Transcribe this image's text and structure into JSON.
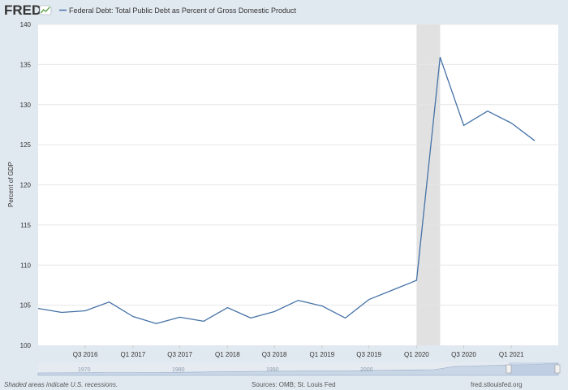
{
  "header": {
    "logo_text": "FRED",
    "legend_label": "Federal Debt: Total Public Debt as Percent of Gross Domestic Product"
  },
  "footer": {
    "note": "Shaded areas indicate U.S. recessions.",
    "sources": "Sources: OMB; St. Louis Fed",
    "site": "fred.stlouisfed.org"
  },
  "navigator": {
    "year_labels": [
      "1970",
      "1980",
      "1990",
      "2000"
    ]
  },
  "colors": {
    "series": "#4572a7",
    "recession": "#e1e1e1",
    "background": "#e1e9f0",
    "plot": "#ffffff"
  },
  "chart_data": {
    "type": "line",
    "title": "",
    "ylabel": "Percent of GDP",
    "xlabel": "",
    "ylim": [
      100,
      140
    ],
    "yticks": [
      100,
      105,
      110,
      115,
      120,
      125,
      130,
      135,
      140
    ],
    "grid": "horizontal",
    "legend_position": "top-left",
    "x_range": [
      "2016-01-01",
      "2021-07-01"
    ],
    "xticks": [
      {
        "date": "2016-07-01",
        "label": "Q3 2016"
      },
      {
        "date": "2017-01-01",
        "label": "Q1 2017"
      },
      {
        "date": "2017-07-01",
        "label": "Q3 2017"
      },
      {
        "date": "2018-01-01",
        "label": "Q1 2018"
      },
      {
        "date": "2018-07-01",
        "label": "Q3 2018"
      },
      {
        "date": "2019-01-01",
        "label": "Q1 2019"
      },
      {
        "date": "2019-07-01",
        "label": "Q3 2019"
      },
      {
        "date": "2020-01-01",
        "label": "Q1 2020"
      },
      {
        "date": "2020-07-01",
        "label": "Q3 2020"
      },
      {
        "date": "2021-01-01",
        "label": "Q1 2021"
      }
    ],
    "recessions": [
      {
        "start": "2020-01-01",
        "end": "2020-04-01"
      }
    ],
    "series": [
      {
        "name": "Federal Debt: Total Public Debt as Percent of Gross Domestic Product",
        "x": [
          "2016-01-01",
          "2016-04-01",
          "2016-07-01",
          "2016-10-01",
          "2017-01-01",
          "2017-04-01",
          "2017-07-01",
          "2017-10-01",
          "2018-01-01",
          "2018-04-01",
          "2018-07-01",
          "2018-10-01",
          "2019-01-01",
          "2019-04-01",
          "2019-07-01",
          "2019-10-01",
          "2020-01-01",
          "2020-04-01",
          "2020-07-01",
          "2020-10-01",
          "2021-01-01",
          "2021-04-01"
        ],
        "values": [
          104.6,
          104.1,
          104.3,
          105.4,
          103.6,
          102.7,
          103.5,
          103.0,
          104.7,
          103.4,
          104.2,
          105.6,
          104.9,
          103.4,
          105.7,
          106.9,
          108.1,
          135.9,
          127.4,
          129.2,
          127.7,
          125.5
        ]
      }
    ]
  }
}
